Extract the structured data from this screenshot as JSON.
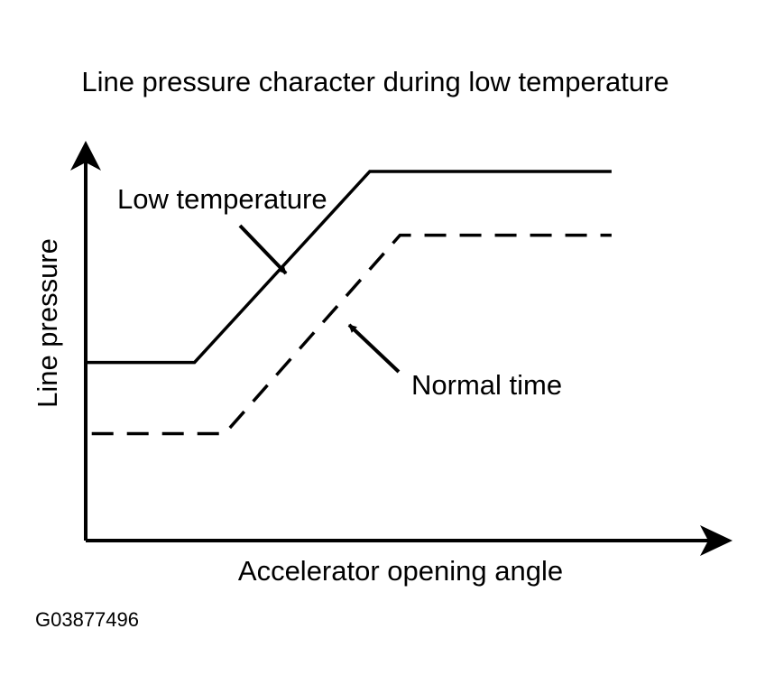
{
  "chart_data": {
    "type": "line",
    "title": "Line pressure character during low temperature",
    "xlabel": "Accelerator opening angle",
    "ylabel": "Line pressure",
    "xlim": [
      0,
      100
    ],
    "ylim": [
      0,
      100
    ],
    "grid": false,
    "legend": "none",
    "series": [
      {
        "name": "Low temperature",
        "style": "solid",
        "color": "#000000",
        "x": [
          0,
          18,
          47,
          87
        ],
        "y": [
          49,
          49,
          100,
          100
        ]
      },
      {
        "name": "Normal time",
        "style": "dashed",
        "color": "#000000",
        "x": [
          1,
          23,
          52,
          87
        ],
        "y": [
          30,
          30,
          83,
          83
        ]
      }
    ],
    "annotations": [
      {
        "id": "low-temperature",
        "text": "Low temperature",
        "series": 0
      },
      {
        "id": "normal-time",
        "text": "Normal time",
        "series": 1
      }
    ]
  },
  "figure_code": "G03877496"
}
